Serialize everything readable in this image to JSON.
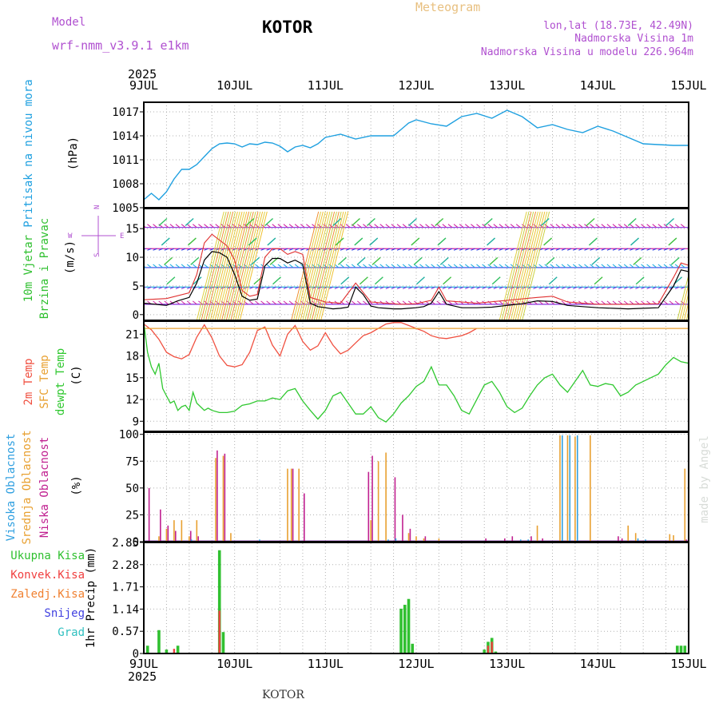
{
  "header": {
    "model_label": "Model",
    "model_name": "wrf-nmm_v3.9.1 e1km",
    "title": "KOTOR",
    "meteogram_label": "Meteogram",
    "lonlat": "lon,lat (18.73E, 42.49N)",
    "altitude": "Nadmorska Visina 1m",
    "model_altitude": "Nadmorska Visina u modelu 226.964m",
    "year": "2025",
    "footer_station": "KOTOR",
    "watermark": "made by Angel"
  },
  "time_axis": {
    "labels": [
      "9JUL",
      "10JUL",
      "11JUL",
      "12JUL",
      "13JUL",
      "14JUL",
      "15JUL"
    ],
    "range_hours": [
      0,
      144
    ]
  },
  "panels": {
    "pressure": {
      "ylabel_left": "Pritisak na nivou mora",
      "ylabel_right": "(hPa)"
    },
    "wind": {
      "ylabel_left": [
        "10m Vjetar",
        "Brzina i Pravac"
      ],
      "ylabel_right": "(m/s)",
      "compass": {
        "n": "N",
        "w": "W",
        "e": "E",
        "s": "S"
      }
    },
    "temp": {
      "ylabel_2m": "2m Temp",
      "ylabel_sfc": "SFC Temp",
      "ylabel_dew": "dewpt Temp",
      "ylabel_unit": "(C)"
    },
    "cloud": {
      "ylabel_high": "Visoka Oblacnost",
      "ylabel_mid": "Srednja Oblacnost",
      "ylabel_low": "Niska Oblacnost",
      "ylabel_unit": "(%)"
    },
    "precip": {
      "legend": [
        "Ukupna Kisa",
        "Konvek.Kisa",
        "Zaledj.Kisa",
        "Snijeg",
        "Grad"
      ],
      "ylabel": "1hr Precip (mm)"
    }
  },
  "colors": {
    "pressure": "#1fa0e0",
    "temp2m": "#f05040",
    "sfc": "#e8a030",
    "dew": "#30c830",
    "high": "#30a0e0",
    "mid": "#e8a030",
    "low": "#c02090",
    "ukupna": "#30c030",
    "konvek": "#f04040",
    "zaledj": "#f08030",
    "snijeg": "#4040e0",
    "grad": "#30c0c0",
    "purple": "#b050d0"
  },
  "chart_data": [
    {
      "type": "line",
      "name": "pressure",
      "ylim": [
        1005,
        1018.2
      ],
      "yticks": [
        1005,
        1008,
        1011,
        1014,
        1017
      ],
      "series": [
        {
          "x": [
            0,
            2,
            4,
            6,
            8,
            10,
            12,
            14,
            16,
            18,
            20,
            22,
            24,
            26,
            28,
            30,
            32,
            34,
            36,
            38,
            40,
            42,
            44,
            46,
            48,
            52,
            56,
            60,
            64,
            66,
            68,
            70,
            72,
            76,
            80,
            84,
            88,
            92,
            96,
            100,
            104,
            108,
            112,
            116,
            120,
            124,
            128,
            132,
            136,
            140,
            144
          ],
          "values": [
            1006.0,
            1006.8,
            1006.0,
            1007.0,
            1008.6,
            1009.8,
            1009.8,
            1010.4,
            1011.4,
            1012.4,
            1013.0,
            1013.1,
            1013.0,
            1012.6,
            1013.0,
            1012.9,
            1013.2,
            1013.1,
            1012.7,
            1012.0,
            1012.6,
            1012.8,
            1012.5,
            1013.0,
            1013.8,
            1014.2,
            1013.6,
            1014.0,
            1014.0,
            1014.0,
            1014.8,
            1015.6,
            1016.0,
            1015.5,
            1015.2,
            1016.4,
            1016.8,
            1016.2,
            1017.2,
            1016.4,
            1015.0,
            1015.4,
            1014.8,
            1014.4,
            1015.2,
            1014.6,
            1013.8,
            1013.0,
            1012.9,
            1012.8,
            1012.8
          ]
        }
      ]
    },
    {
      "type": "line",
      "name": "wind",
      "ylim": [
        -1,
        18.5
      ],
      "yticks": [
        0,
        5,
        10,
        15
      ],
      "series": [
        {
          "name": "speed",
          "x": [
            0,
            3,
            6,
            9,
            12,
            14,
            16,
            18,
            20,
            22,
            24,
            26,
            28,
            30,
            32,
            34,
            36,
            38,
            40,
            42,
            44,
            46,
            48,
            50,
            52,
            54,
            56,
            58,
            60,
            62,
            64,
            66,
            68,
            70,
            72,
            74,
            76,
            78,
            80,
            84,
            88,
            92,
            96,
            100,
            104,
            108,
            112,
            116,
            120,
            124,
            128,
            132,
            136,
            140,
            142,
            144
          ],
          "values": [
            2.0,
            1.8,
            1.6,
            2.4,
            3.0,
            5.5,
            9.5,
            11.0,
            10.8,
            10.0,
            7.0,
            3.2,
            2.5,
            2.7,
            8.5,
            9.8,
            9.8,
            9.0,
            9.5,
            8.8,
            2.0,
            1.4,
            1.2,
            1.0,
            1.1,
            1.3,
            4.8,
            3.5,
            1.5,
            1.2,
            1.1,
            1.0,
            1.0,
            1.1,
            1.2,
            1.4,
            2.0,
            4.0,
            1.8,
            1.2,
            1.2,
            1.3,
            1.6,
            1.9,
            2.4,
            2.3,
            1.6,
            1.4,
            1.2,
            1.1,
            1.0,
            1.1,
            1.2,
            5.0,
            7.8,
            7.5
          ]
        },
        {
          "name": "gust",
          "x": [
            0,
            6,
            12,
            14,
            16,
            18,
            20,
            22,
            24,
            26,
            28,
            30,
            32,
            34,
            36,
            38,
            40,
            42,
            44,
            48,
            52,
            56,
            60,
            64,
            68,
            72,
            76,
            78,
            80,
            88,
            96,
            104,
            108,
            112,
            120,
            128,
            136,
            140,
            142,
            144
          ],
          "values": [
            2.6,
            2.8,
            3.8,
            7.0,
            12.5,
            14.0,
            13.0,
            12.0,
            9.5,
            4.2,
            3.2,
            3.5,
            10.0,
            11.5,
            11.5,
            10.5,
            11.0,
            10.5,
            3.0,
            2.2,
            2.0,
            5.5,
            2.2,
            2.0,
            1.8,
            1.9,
            2.5,
            4.8,
            2.4,
            2.0,
            2.5,
            3.0,
            3.2,
            2.2,
            1.8,
            1.8,
            1.9,
            6.5,
            9.0,
            8.6
          ]
        }
      ]
    },
    {
      "type": "line",
      "name": "temperature",
      "ylim": [
        7.6,
        22.8
      ],
      "yticks": [
        9,
        12,
        15,
        18,
        21
      ],
      "series": [
        {
          "name": "2m",
          "x": [
            0,
            2,
            4,
            6,
            8,
            10,
            12,
            14,
            16,
            18,
            20,
            22,
            24,
            26,
            28,
            30,
            32,
            34,
            36,
            38,
            40,
            42,
            44,
            46,
            48,
            50,
            52,
            54,
            56,
            58,
            60,
            62,
            64,
            66,
            68,
            70,
            72,
            74,
            76,
            78,
            80,
            82,
            84,
            86,
            88
          ],
          "values": [
            22.4,
            21.6,
            20.3,
            18.5,
            17.9,
            17.6,
            18.2,
            20.6,
            22.3,
            20.5,
            18.0,
            16.7,
            16.5,
            16.8,
            18.5,
            21.5,
            22.0,
            19.5,
            18.0,
            21.0,
            22.2,
            20.0,
            18.8,
            19.4,
            21.2,
            19.5,
            18.3,
            18.8,
            19.8,
            20.8,
            21.2,
            21.8,
            22.4,
            22.6,
            22.6,
            22.2,
            21.8,
            21.4,
            20.8,
            20.5,
            20.4,
            20.6,
            20.8,
            21.2,
            21.8
          ]
        },
        {
          "name": "sfc",
          "x": [
            0,
            144
          ],
          "values": [
            21.8,
            21.8
          ]
        },
        {
          "name": "dew",
          "x": [
            0,
            1,
            2,
            3,
            4,
            5,
            6,
            7,
            8,
            9,
            10,
            11,
            12,
            13,
            14,
            15,
            16,
            17,
            18,
            20,
            22,
            24,
            26,
            28,
            30,
            32,
            34,
            36,
            38,
            40,
            42,
            44,
            46,
            48,
            50,
            52,
            54,
            56,
            58,
            60,
            62,
            64,
            66,
            68,
            70,
            72,
            74,
            76,
            78,
            80,
            82,
            84,
            86,
            88,
            90,
            92,
            94,
            96,
            98,
            100,
            102,
            104,
            106,
            108,
            110,
            112,
            114,
            116,
            118,
            120,
            122,
            124,
            126,
            128,
            130,
            132,
            134,
            136,
            138,
            140,
            142,
            144
          ],
          "values": [
            22.6,
            18.5,
            16.5,
            15.5,
            17.0,
            13.5,
            12.5,
            11.5,
            11.8,
            10.5,
            11.0,
            11.2,
            10.5,
            13.0,
            11.5,
            11.0,
            10.5,
            10.8,
            10.5,
            10.2,
            10.2,
            10.4,
            11.2,
            11.4,
            11.8,
            11.8,
            12.2,
            12.0,
            13.2,
            13.5,
            11.8,
            10.5,
            9.3,
            10.5,
            12.5,
            13.0,
            11.5,
            10.0,
            10.0,
            11.0,
            9.5,
            8.9,
            10.0,
            11.5,
            12.5,
            13.8,
            14.5,
            16.5,
            14.0,
            14.0,
            12.5,
            10.5,
            10.0,
            12.0,
            14.0,
            14.5,
            13.0,
            11.0,
            10.2,
            10.8,
            12.5,
            14.0,
            15.0,
            15.5,
            14.0,
            13.0,
            14.5,
            16.0,
            14.0,
            13.8,
            14.2,
            14.0,
            12.5,
            13.0,
            14.0,
            14.5,
            15.0,
            15.5,
            16.8,
            17.8,
            17.2,
            17.0
          ]
        }
      ]
    },
    {
      "type": "bar",
      "name": "cloud_cover",
      "ylim": [
        0,
        102
      ],
      "yticks": [
        0,
        25,
        50,
        75,
        100
      ],
      "series": [
        {
          "name": "low",
          "x": [
            2,
            5,
            7,
            9,
            13,
            15,
            20,
            22,
            40,
            43,
            60,
            61,
            67,
            69,
            71,
            75,
            91,
            96,
            98,
            103,
            106,
            126,
            127,
            144
          ],
          "values": [
            50,
            30,
            15,
            10,
            10,
            5,
            85,
            82,
            68,
            45,
            65,
            80,
            60,
            25,
            12,
            5,
            3,
            3,
            5,
            5,
            3,
            5,
            3,
            2
          ]
        },
        {
          "name": "mid",
          "x": [
            4,
            6,
            8,
            10,
            12,
            14,
            19,
            21,
            23,
            38,
            39,
            41,
            60,
            62,
            64,
            70,
            72,
            74,
            78,
            104,
            110,
            112,
            114,
            118,
            128,
            130,
            139,
            140,
            143,
            144
          ],
          "values": [
            5,
            12,
            20,
            20,
            5,
            20,
            78,
            80,
            8,
            68,
            68,
            68,
            20,
            75,
            83,
            8,
            5,
            3,
            3,
            15,
            99,
            99,
            98,
            99,
            15,
            8,
            7,
            6,
            68,
            68
          ]
        },
        {
          "name": "high",
          "x": [
            12,
            30,
            64,
            66,
            99,
            101,
            110,
            112,
            114,
            130,
            132
          ],
          "values": [
            2,
            2,
            2,
            3,
            2,
            2,
            99,
            99,
            99,
            3,
            2
          ]
        }
      ]
    },
    {
      "type": "bar",
      "name": "precipitation",
      "ylim": [
        0,
        2.85
      ],
      "yticks": [
        0,
        0.57,
        1.14,
        1.71,
        2.28,
        2.85
      ],
      "series": [
        {
          "name": "Ukupna Kisa",
          "x": [
            1,
            4,
            6,
            9,
            20,
            21,
            68,
            69,
            70,
            71,
            90,
            91,
            92,
            93,
            141,
            142,
            143
          ],
          "values": [
            0.2,
            0.6,
            0.1,
            0.2,
            2.65,
            0.55,
            1.15,
            1.25,
            1.4,
            0.25,
            0.1,
            0.3,
            0.4,
            0.05,
            0.2,
            0.2,
            0.2
          ]
        },
        {
          "name": "Konvek.Kisa",
          "x": [
            8,
            20,
            91,
            92
          ],
          "values": [
            0.12,
            1.1,
            0.2,
            0.3
          ]
        },
        {
          "name": "Zaledj.Kisa",
          "x": [],
          "values": []
        },
        {
          "name": "Snijeg",
          "x": [],
          "values": []
        },
        {
          "name": "Grad",
          "x": [],
          "values": []
        }
      ]
    }
  ]
}
